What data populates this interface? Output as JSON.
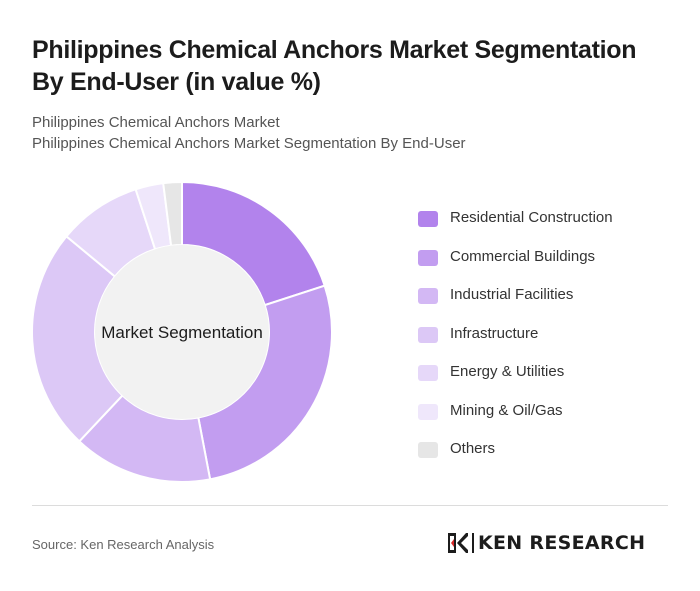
{
  "header": {
    "title": "Philippines Chemical Anchors Market Segmentation By End-User (in value %)",
    "subtitle_1": "Philippines Chemical Anchors Market",
    "subtitle_2": "Philippines Chemical Anchors Market Segmentation By End-User"
  },
  "chart_data": {
    "type": "pie",
    "variant": "donut",
    "center_label": "Market Segmentation",
    "categories": [
      "Residential Construction",
      "Commercial Buildings",
      "Industrial Facilities",
      "Infrastructure",
      "Energy & Utilities",
      "Mining & Oil/Gas",
      "Others"
    ],
    "values": [
      20,
      27,
      15,
      24,
      9,
      3,
      2
    ],
    "colors": [
      "#b283ec",
      "#c29df0",
      "#d3b8f4",
      "#dcc8f6",
      "#e6d8f9",
      "#efe7fb",
      "#e6e6e6"
    ],
    "legend_position": "right"
  },
  "footer": {
    "source": "Source: Ken Research Analysis",
    "logo_text": "KEN RESEARCH"
  }
}
